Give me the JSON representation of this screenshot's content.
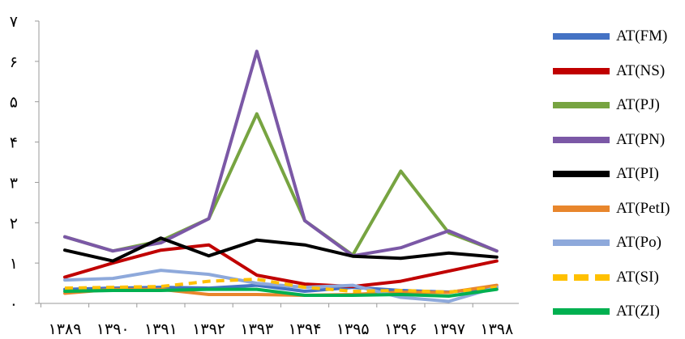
{
  "chart_data": {
    "type": "line",
    "categories": [
      "۱۳۸۹",
      "۱۳۹۰",
      "۱۳۹۱",
      "۱۳۹۲",
      "۱۳۹۳",
      "۱۳۹۴",
      "۱۳۹۵",
      "۱۳۹۶",
      "۱۳۹۷",
      "۱۳۹۸"
    ],
    "y_ticks": [
      "۰",
      "۱",
      "۲",
      "۳",
      "۴",
      "۵",
      "۶",
      "۷"
    ],
    "ylim": [
      0,
      7
    ],
    "grid": false,
    "legend_position": "right",
    "series": [
      {
        "name": "AT(FM)",
        "color": "#4472C4",
        "dashed": false,
        "values": [
          0.35,
          0.38,
          0.4,
          0.38,
          0.45,
          0.3,
          0.4,
          0.32,
          0.28,
          0.4
        ]
      },
      {
        "name": "AT(NS)",
        "color": "#C00000",
        "dashed": false,
        "values": [
          0.65,
          1.0,
          1.32,
          1.45,
          0.7,
          0.48,
          0.42,
          0.55,
          0.8,
          1.05
        ]
      },
      {
        "name": "AT(PJ)",
        "color": "#77A441",
        "dashed": false,
        "values": [
          1.65,
          1.3,
          1.55,
          2.1,
          4.7,
          2.05,
          1.2,
          3.28,
          1.75,
          1.3
        ]
      },
      {
        "name": "AT(PN)",
        "color": "#7B58A6",
        "dashed": false,
        "values": [
          1.65,
          1.3,
          1.5,
          2.1,
          6.25,
          2.05,
          1.18,
          1.38,
          1.8,
          1.3
        ]
      },
      {
        "name": "AT(PI)",
        "color": "#000000",
        "dashed": false,
        "values": [
          1.32,
          1.05,
          1.62,
          1.18,
          1.57,
          1.45,
          1.17,
          1.12,
          1.25,
          1.15
        ]
      },
      {
        "name": "AT(PetI)",
        "color": "#E8862C",
        "dashed": false,
        "values": [
          0.25,
          0.35,
          0.35,
          0.22,
          0.22,
          0.2,
          0.22,
          0.28,
          0.27,
          0.45
        ]
      },
      {
        "name": "AT(Po)",
        "color": "#8EA9DB",
        "dashed": false,
        "values": [
          0.58,
          0.62,
          0.82,
          0.72,
          0.5,
          0.4,
          0.45,
          0.15,
          0.05,
          0.4
        ]
      },
      {
        "name": "AT(SI)",
        "color": "#FFC000",
        "dashed": true,
        "values": [
          0.38,
          0.4,
          0.42,
          0.55,
          0.6,
          0.4,
          0.3,
          0.32,
          0.28,
          0.4
        ]
      },
      {
        "name": "AT(ZI)",
        "color": "#00B050",
        "dashed": false,
        "values": [
          0.3,
          0.32,
          0.32,
          0.35,
          0.35,
          0.2,
          0.2,
          0.22,
          0.18,
          0.35
        ]
      }
    ]
  }
}
